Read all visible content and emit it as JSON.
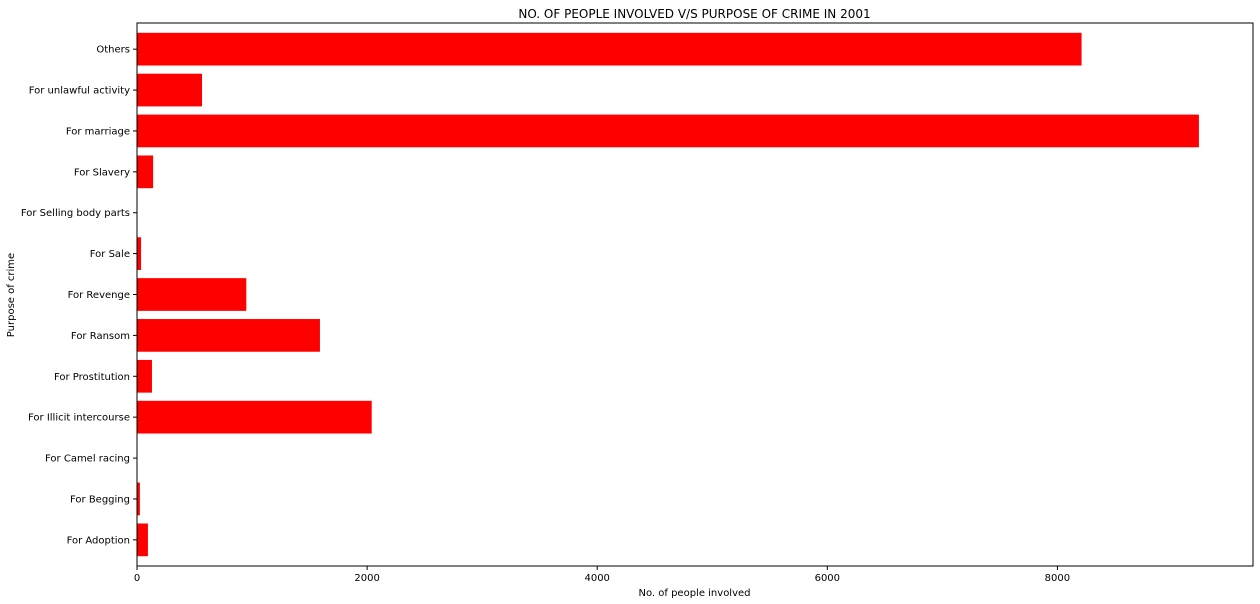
{
  "chart_data": {
    "type": "bar",
    "orientation": "horizontal",
    "title": "NO. OF PEOPLE INVOLVED V/S PURPOSE OF CRIME IN 2001",
    "xlabel": "No. of people involved",
    "ylabel": "Purpose of crime",
    "categories": [
      "For Adoption",
      "For Begging",
      "For Camel racing",
      "For Illicit intercourse",
      "For Prostitution",
      "For Ransom",
      "For Revenge",
      "For Sale",
      "For Selling body parts",
      "For Slavery",
      "For marriage",
      "For unlawful activity",
      "Others"
    ],
    "values": [
      95,
      25,
      0,
      2040,
      130,
      1590,
      950,
      35,
      0,
      140,
      9230,
      565,
      8210
    ],
    "xlim": [
      0,
      9700
    ],
    "xticks": [
      0,
      2000,
      4000,
      6000,
      8000
    ],
    "grid": false,
    "bar_color": "#ff0000"
  }
}
